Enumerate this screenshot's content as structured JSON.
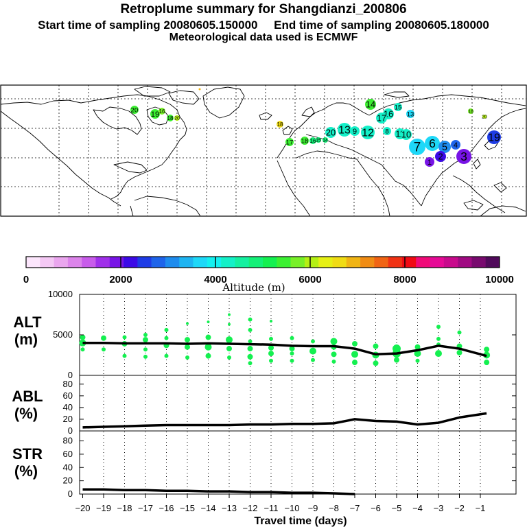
{
  "header": {
    "title": "Retroplume summary for Shangdianzi_200806",
    "sampling_line": "Start time of sampling 20080605.150000     End time of sampling 20080605.180000",
    "met_line": "Meteorological data used is ECMWF"
  },
  "colorbar": {
    "label": "Altitude (m)",
    "ticks": [
      "0",
      "2000",
      "4000",
      "6000",
      "8000",
      "10000"
    ],
    "colors": [
      "#fce6fc",
      "#f4c8f4",
      "#eaa6ee",
      "#dc84ea",
      "#c85cea",
      "#a030ea",
      "#7814e6",
      "#3c0ae6",
      "#1e3ce6",
      "#1e64ea",
      "#1e8cee",
      "#1eb4f2",
      "#1ed8f8",
      "#14f0f0",
      "#14f0c8",
      "#14f0a0",
      "#14f078",
      "#14f050",
      "#3cf032",
      "#78f028",
      "#b4f014",
      "#e6f014",
      "#f0dc14",
      "#f0b414",
      "#f08c14",
      "#f06414",
      "#f03214",
      "#f00a14",
      "#f00a78",
      "#e60a96",
      "#c80a8c",
      "#a00a82",
      "#780a6e",
      "#500a5a"
    ]
  },
  "map_labels": [
    {
      "text": "20"
    },
    {
      "text": "19"
    },
    {
      "text": "16"
    },
    {
      "text": "18"
    },
    {
      "text": "20"
    },
    {
      "text": "18"
    },
    {
      "text": "17"
    },
    {
      "text": "18"
    },
    {
      "text": "16"
    },
    {
      "text": "15"
    },
    {
      "text": "14"
    },
    {
      "text": "20"
    },
    {
      "text": "13"
    },
    {
      "text": "9"
    },
    {
      "text": "12"
    },
    {
      "text": "8"
    },
    {
      "text": "11"
    },
    {
      "text": "10"
    },
    {
      "text": "7"
    },
    {
      "text": "6"
    },
    {
      "text": "5"
    },
    {
      "text": "4"
    },
    {
      "text": "3"
    },
    {
      "text": "2"
    },
    {
      "text": "1"
    },
    {
      "text": "14"
    },
    {
      "text": "16"
    },
    {
      "text": "17"
    },
    {
      "text": "15"
    },
    {
      "text": "13"
    },
    {
      "text": "19"
    },
    {
      "text": "18"
    },
    {
      "text": "20"
    }
  ],
  "panels": {
    "alt": {
      "label1": "ALT",
      "label2": "(m)"
    },
    "abl": {
      "label1": "ABL",
      "label2": "(%)"
    },
    "str": {
      "label1": "STR",
      "label2": "(%)"
    }
  },
  "chart_data": [
    {
      "type": "line",
      "name": "ALT",
      "ylabel": "ALT (m)",
      "ylim": [
        0,
        10000
      ],
      "y_ticks": [
        "0",
        "5000",
        "10000"
      ],
      "x": [
        -20,
        -19,
        -18,
        -17,
        -16,
        -15,
        -14,
        -13,
        -12,
        -11,
        -10,
        -9,
        -8,
        -7,
        -6,
        -5,
        -4,
        -3,
        -2,
        -0.7
      ],
      "series": [
        {
          "name": "mean altitude",
          "values": [
            4000,
            4000,
            3950,
            3950,
            3950,
            3900,
            3950,
            3900,
            3850,
            3800,
            3650,
            3600,
            3600,
            3300,
            2600,
            2700,
            3100,
            3650,
            3300,
            2400
          ]
        }
      ],
      "scatter_points": [
        {
          "x": -20,
          "y": 4700,
          "r": 4
        },
        {
          "x": -20,
          "y": 4000,
          "r": 5
        },
        {
          "x": -20,
          "y": 3200,
          "r": 3
        },
        {
          "x": -19,
          "y": 4600,
          "r": 4
        },
        {
          "x": -19,
          "y": 3200,
          "r": 3
        },
        {
          "x": -18,
          "y": 4700,
          "r": 3
        },
        {
          "x": -18,
          "y": 3900,
          "r": 4
        },
        {
          "x": -18,
          "y": 2400,
          "r": 3
        },
        {
          "x": -17,
          "y": 5000,
          "r": 3
        },
        {
          "x": -17,
          "y": 4400,
          "r": 4
        },
        {
          "x": -17,
          "y": 3200,
          "r": 3
        },
        {
          "x": -17,
          "y": 2300,
          "r": 3
        },
        {
          "x": -16,
          "y": 5600,
          "r": 3
        },
        {
          "x": -16,
          "y": 4600,
          "r": 3
        },
        {
          "x": -16,
          "y": 3700,
          "r": 4
        },
        {
          "x": -16,
          "y": 2400,
          "r": 3
        },
        {
          "x": -15,
          "y": 6400,
          "r": 2
        },
        {
          "x": -15,
          "y": 4400,
          "r": 4
        },
        {
          "x": -15,
          "y": 3500,
          "r": 4
        },
        {
          "x": -15,
          "y": 2200,
          "r": 3
        },
        {
          "x": -14,
          "y": 6600,
          "r": 2
        },
        {
          "x": -14,
          "y": 4700,
          "r": 4
        },
        {
          "x": -14,
          "y": 3500,
          "r": 5
        },
        {
          "x": -14,
          "y": 2400,
          "r": 4
        },
        {
          "x": -13,
          "y": 7500,
          "r": 2
        },
        {
          "x": -13,
          "y": 6300,
          "r": 2
        },
        {
          "x": -13,
          "y": 4400,
          "r": 5
        },
        {
          "x": -13,
          "y": 3300,
          "r": 4
        },
        {
          "x": -13,
          "y": 2200,
          "r": 3
        },
        {
          "x": -12,
          "y": 6900,
          "r": 3
        },
        {
          "x": -12,
          "y": 5600,
          "r": 3
        },
        {
          "x": -12,
          "y": 4200,
          "r": 3
        },
        {
          "x": -12,
          "y": 3300,
          "r": 4
        },
        {
          "x": -12,
          "y": 2300,
          "r": 4
        },
        {
          "x": -12,
          "y": 1500,
          "r": 3
        },
        {
          "x": -11,
          "y": 6700,
          "r": 2
        },
        {
          "x": -11,
          "y": 4500,
          "r": 3
        },
        {
          "x": -11,
          "y": 3400,
          "r": 4
        },
        {
          "x": -11,
          "y": 2700,
          "r": 4
        },
        {
          "x": -11,
          "y": 1800,
          "r": 3
        },
        {
          "x": -10,
          "y": 4600,
          "r": 3
        },
        {
          "x": -10,
          "y": 3300,
          "r": 4
        },
        {
          "x": -10,
          "y": 2700,
          "r": 3
        },
        {
          "x": -10,
          "y": 1800,
          "r": 3
        },
        {
          "x": -9,
          "y": 4200,
          "r": 3
        },
        {
          "x": -9,
          "y": 3000,
          "r": 5
        },
        {
          "x": -9,
          "y": 1900,
          "r": 3
        },
        {
          "x": -8,
          "y": 4200,
          "r": 5
        },
        {
          "x": -8,
          "y": 3500,
          "r": 4
        },
        {
          "x": -8,
          "y": 2600,
          "r": 4
        },
        {
          "x": -8,
          "y": 1700,
          "r": 3
        },
        {
          "x": -7,
          "y": 3900,
          "r": 4
        },
        {
          "x": -7,
          "y": 2600,
          "r": 5
        },
        {
          "x": -7,
          "y": 1600,
          "r": 4
        },
        {
          "x": -6,
          "y": 3600,
          "r": 4
        },
        {
          "x": -6,
          "y": 2500,
          "r": 5
        },
        {
          "x": -6,
          "y": 1500,
          "r": 4
        },
        {
          "x": -5,
          "y": 3300,
          "r": 6
        },
        {
          "x": -5,
          "y": 2700,
          "r": 6
        },
        {
          "x": -5,
          "y": 1900,
          "r": 4
        },
        {
          "x": -4,
          "y": 3500,
          "r": 4
        },
        {
          "x": -4,
          "y": 2700,
          "r": 5
        },
        {
          "x": -4,
          "y": 1800,
          "r": 3
        },
        {
          "x": -3,
          "y": 6000,
          "r": 3
        },
        {
          "x": -3,
          "y": 4500,
          "r": 3
        },
        {
          "x": -3,
          "y": 3800,
          "r": 3
        },
        {
          "x": -3,
          "y": 2700,
          "r": 5
        },
        {
          "x": -2,
          "y": 5300,
          "r": 3
        },
        {
          "x": -2,
          "y": 3600,
          "r": 4
        },
        {
          "x": -2,
          "y": 2800,
          "r": 4
        },
        {
          "x": -0.7,
          "y": 3200,
          "r": 4
        },
        {
          "x": -0.7,
          "y": 2500,
          "r": 5
        },
        {
          "x": -0.7,
          "y": 1600,
          "r": 4
        }
      ]
    },
    {
      "type": "line",
      "name": "ABL",
      "ylabel": "ABL (%)",
      "ylim": [
        0,
        95
      ],
      "y_ticks": [
        "0",
        "20",
        "40",
        "60",
        "80"
      ],
      "x": [
        -20,
        -19,
        -18,
        -17,
        -16,
        -15,
        -14,
        -13,
        -12,
        -11,
        -10,
        -9,
        -8,
        -7,
        -6,
        -5,
        -4,
        -3,
        -2,
        -0.7
      ],
      "series": [
        {
          "name": "ABL fraction",
          "values": [
            6,
            7,
            8,
            9,
            10,
            10,
            10,
            10,
            11,
            11,
            12,
            12,
            13,
            20,
            17,
            16,
            11,
            14,
            23,
            30
          ]
        }
      ]
    },
    {
      "type": "line",
      "name": "STR",
      "ylabel": "STR (%)",
      "ylim": [
        0,
        95
      ],
      "y_ticks": [
        "0",
        "20",
        "40",
        "60",
        "80"
      ],
      "xlabel": "Travel time (days)",
      "x_ticks": [
        "-20",
        "-19",
        "-18",
        "-17",
        "-16",
        "-15",
        "-14",
        "-13",
        "-12",
        "-11",
        "-10",
        "-9",
        "-8",
        "-7",
        "-6",
        "-5",
        "-4",
        "-3",
        "-2",
        "-1"
      ],
      "x": [
        -20,
        -19,
        -18,
        -17,
        -16,
        -15,
        -14,
        -13,
        -12,
        -11,
        -10,
        -9,
        -8,
        -7
      ],
      "series": [
        {
          "name": "stratospheric fraction",
          "values": [
            7,
            7,
            6,
            6,
            5,
            5,
            4,
            4,
            3,
            3,
            2,
            2,
            1,
            0
          ]
        }
      ]
    }
  ]
}
